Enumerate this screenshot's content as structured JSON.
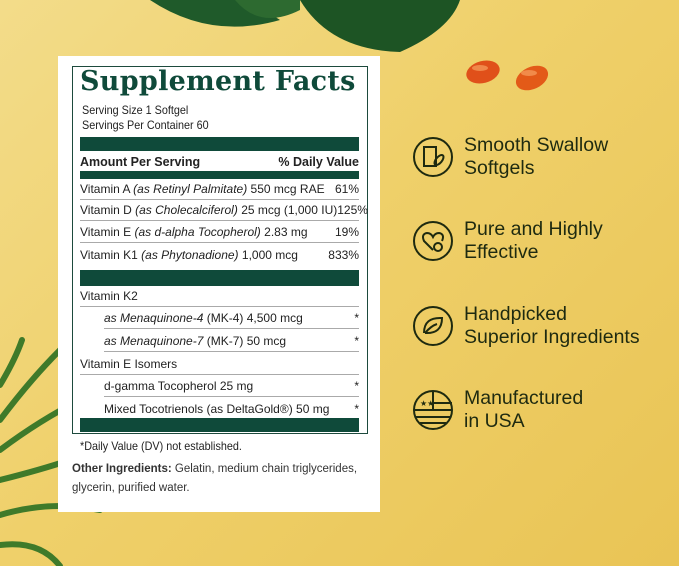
{
  "label": {
    "title": "Supplement Facts",
    "serving_size": "Serving Size 1 Softgel",
    "servings_per_container": "Servings Per Container 60",
    "header_amount": "Amount Per Serving",
    "header_dv": "% Daily Value",
    "rows": [
      {
        "name": "Vitamin A",
        "source": "(as Retinyl Palmitate)",
        "amount": "550 mcg RAE",
        "dv": "61%"
      },
      {
        "name": "Vitamin D",
        "source": "(as Cholecalciferol)",
        "amount": "25 mcg (1,000 IU)",
        "dv": "125%"
      },
      {
        "name": "Vitamin E",
        "source": "(as d-alpha Tocopherol)",
        "amount": "2.83 mg",
        "dv": "19%"
      },
      {
        "name": "Vitamin K1",
        "source": "(as Phytonadione)",
        "amount": "1,000 mcg",
        "dv": "833%"
      }
    ],
    "k2": {
      "name": "Vitamin K2",
      "items": [
        {
          "source": "as Menaquinone-4",
          "amount": "(MK-4) 4,500 mcg",
          "dv": "*"
        },
        {
          "source": "as Menaquinone-7",
          "amount": "(MK-7) 50 mcg",
          "dv": "*"
        }
      ]
    },
    "e_isomers": {
      "name": "Vitamin E Isomers",
      "items": [
        {
          "text": "d-gamma Tocopherol 25 mg",
          "dv": "*"
        },
        {
          "text": "Mixed Tocotrienols (as DeltaGold®) 50 mg",
          "dv": "*"
        }
      ]
    },
    "footnote": "*Daily Value (DV) not established.",
    "other_label": "Other Ingredients:",
    "other_text": " Gelatin, medium chain triglycerides,",
    "other_text2": "glycerin, purified water."
  },
  "features": [
    {
      "icon": "glass-softgel-icon",
      "line1": "Smooth Swallow",
      "line2": "Softgels"
    },
    {
      "icon": "heart-check-icon",
      "line1": "Pure and Highly",
      "line2": "Effective"
    },
    {
      "icon": "leaf-icon",
      "line1": "Handpicked",
      "line2": "Superior Ingredients"
    },
    {
      "icon": "us-flag-icon",
      "line1": "Manufactured",
      "line2": "in USA"
    }
  ],
  "colors": {
    "label_green": "#0f4a3a",
    "background": "#efd06a",
    "softgel": "#e0501a"
  }
}
